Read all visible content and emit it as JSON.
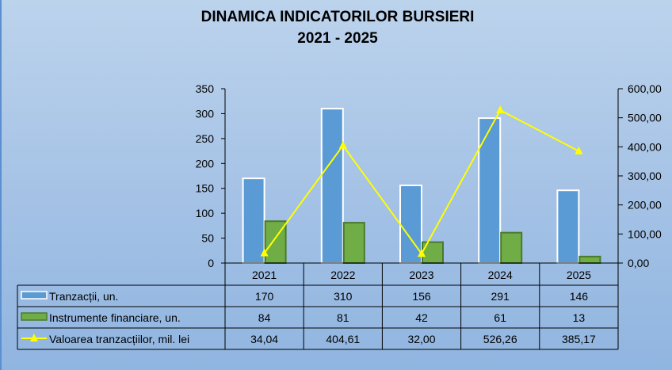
{
  "chart_data": {
    "type": "bar",
    "title": "DINAMICA INDICATORILOR BURSIERI",
    "subtitle": "2021 - 2025",
    "categories": [
      "2021",
      "2022",
      "2023",
      "2024",
      "2025"
    ],
    "series": [
      {
        "name": "Tranzacții, un.",
        "type": "bar",
        "axis": "left",
        "color": "#5b9bd5",
        "values": [
          170,
          310,
          156,
          291,
          146
        ],
        "labels": [
          "170",
          "310",
          "156",
          "291",
          "146"
        ]
      },
      {
        "name": "Instrumente financiare, un.",
        "type": "bar",
        "axis": "left",
        "color": "#70ad47",
        "values": [
          84,
          81,
          42,
          61,
          13
        ],
        "labels": [
          "84",
          "81",
          "42",
          "61",
          "13"
        ]
      },
      {
        "name": "Valoarea tranzacțiilor, mil. lei",
        "type": "line",
        "axis": "right",
        "color": "#ffff00",
        "values": [
          34.04,
          404.61,
          32.0,
          526.26,
          385.17
        ],
        "labels": [
          "34,04",
          "404,61",
          "32,00",
          "526,26",
          "385,17"
        ]
      }
    ],
    "ylim_left": [
      0,
      350
    ],
    "yticks_left": [
      "0",
      "50",
      "100",
      "150",
      "200",
      "250",
      "300",
      "350"
    ],
    "ylim_right": [
      0,
      600
    ],
    "yticks_right": [
      "0,00",
      "100,00",
      "200,00",
      "300,00",
      "400,00",
      "500,00",
      "600,00"
    ],
    "legend": "data-table-bottom"
  }
}
